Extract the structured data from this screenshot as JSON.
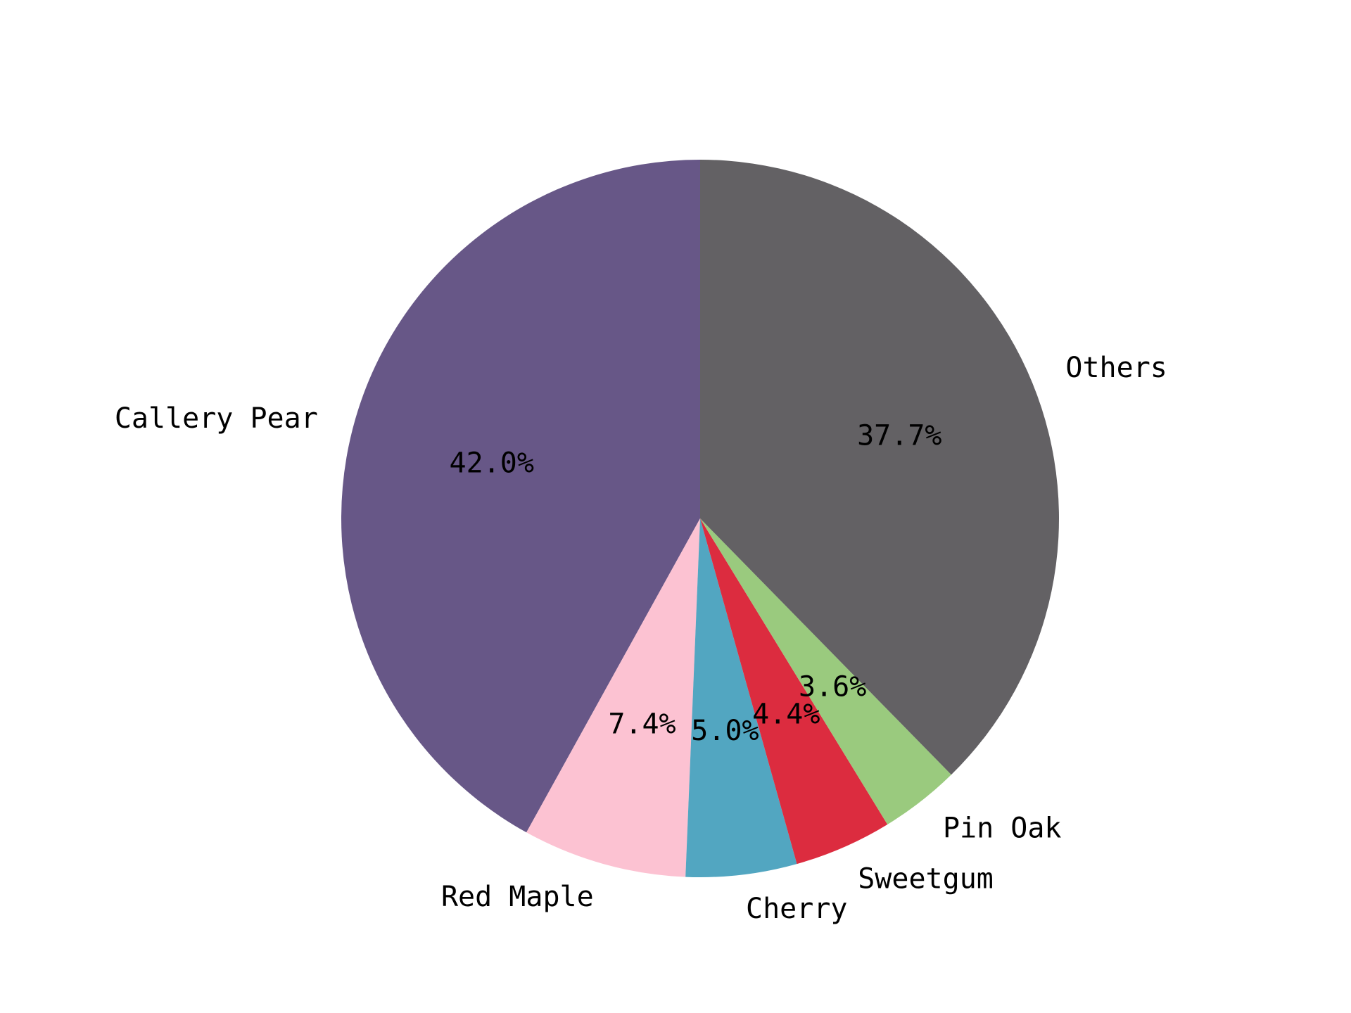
{
  "chart_data": {
    "type": "pie",
    "title": "",
    "start_angle_deg": 90,
    "direction": "counterclockwise",
    "slices": [
      {
        "label": "Callery Pear",
        "value": 42.0,
        "pct_label": "42.0%",
        "color": "#675787"
      },
      {
        "label": "Red Maple",
        "value": 7.4,
        "pct_label": "7.4%",
        "color": "#fcc2d2"
      },
      {
        "label": "Cherry",
        "value": 5.0,
        "pct_label": "5.0%",
        "color": "#52a6c1"
      },
      {
        "label": "Sweetgum",
        "value": 4.4,
        "pct_label": "4.4%",
        "color": "#dc2c3f"
      },
      {
        "label": "Pin Oak",
        "value": 3.6,
        "pct_label": "3.6%",
        "color": "#9aca7e"
      },
      {
        "label": "Others",
        "value": 37.7,
        "pct_label": "37.7%",
        "color": "#636164"
      }
    ]
  }
}
